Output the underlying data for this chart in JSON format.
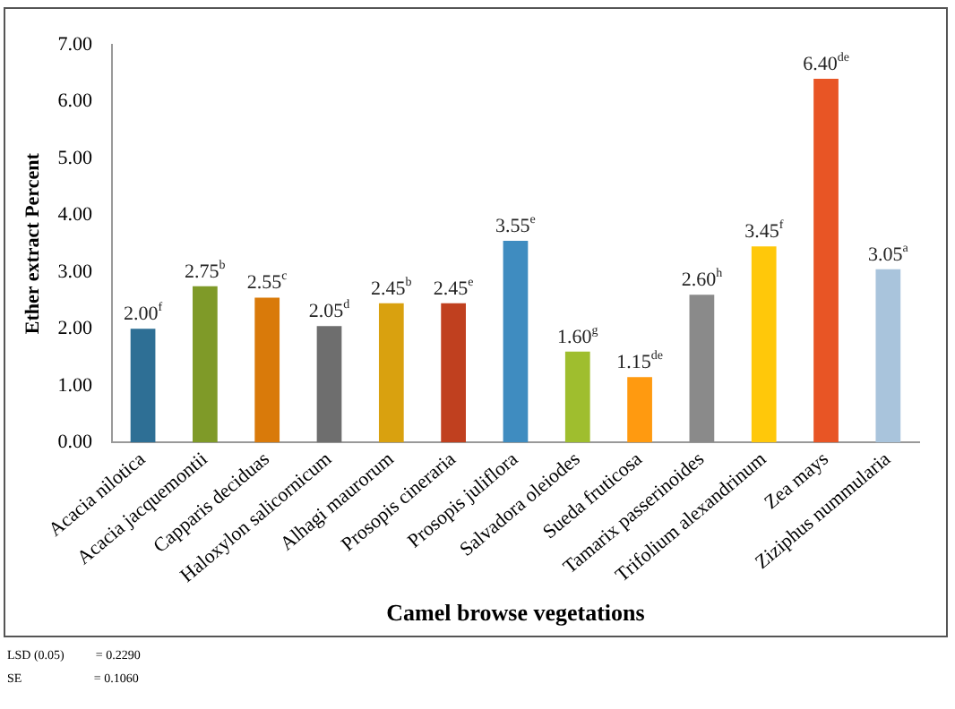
{
  "chart_data": {
    "type": "bar",
    "xlabel": "Camel browse vegetations",
    "ylabel": "Ether extract Percent",
    "categories": [
      "Acacia nilotica",
      "Acacia jacquemontii",
      "Capparis deciduas",
      "Haloxylon salicornicum",
      "Alhagi maurorum",
      "Prosopis cineraria",
      "Prosopis juliflora",
      "Salvadora oleiodes",
      "Sueda fruticosa",
      "Tamarix passerinoides",
      "Trifolium alexandrinum",
      "Zea mays",
      "Ziziphus nummularia"
    ],
    "values": [
      2.0,
      2.75,
      2.55,
      2.05,
      2.45,
      2.45,
      3.55,
      1.6,
      1.15,
      2.6,
      3.45,
      6.4,
      3.05
    ],
    "colors": [
      "#2e6f95",
      "#7f9a28",
      "#d97a0a",
      "#6e6e6e",
      "#d9a10f",
      "#c0401f",
      "#3f8cc0",
      "#9fbe2e",
      "#ff9a10",
      "#8a8a8a",
      "#ffc80a",
      "#e85525",
      "#a9c4dc"
    ],
    "value_labels": [
      "2.00$^{f}$",
      "2.75$^{b}$",
      "2.55$^{c}$",
      "2.05$^{d}$",
      "2.45$^{b}$",
      "2.45$^{e}$",
      "3.55$^{e}$",
      "1.60$^{g}$",
      "1.15$^{de}$",
      "2.60$^{h}$",
      "3.45$^{f}$",
      "6.40$^{de}$",
      "3.05$^{a}$"
    ],
    "ylim": [
      0,
      7
    ],
    "yticks": [
      {
        "value": 0,
        "label": "0.00"
      },
      {
        "value": 1,
        "label": "1.00"
      },
      {
        "value": 2,
        "label": "2.00"
      },
      {
        "value": 3,
        "label": "3.00"
      },
      {
        "value": 4,
        "label": "4.00"
      },
      {
        "value": 5,
        "label": "5.00"
      },
      {
        "value": 6,
        "label": "6.00"
      },
      {
        "value": 7,
        "label": "7.00"
      }
    ],
    "grid": false,
    "legend": false,
    "annotations": [
      "LSD (0.05)          = 0.2290",
      "SE                       = 0.1060"
    ]
  }
}
